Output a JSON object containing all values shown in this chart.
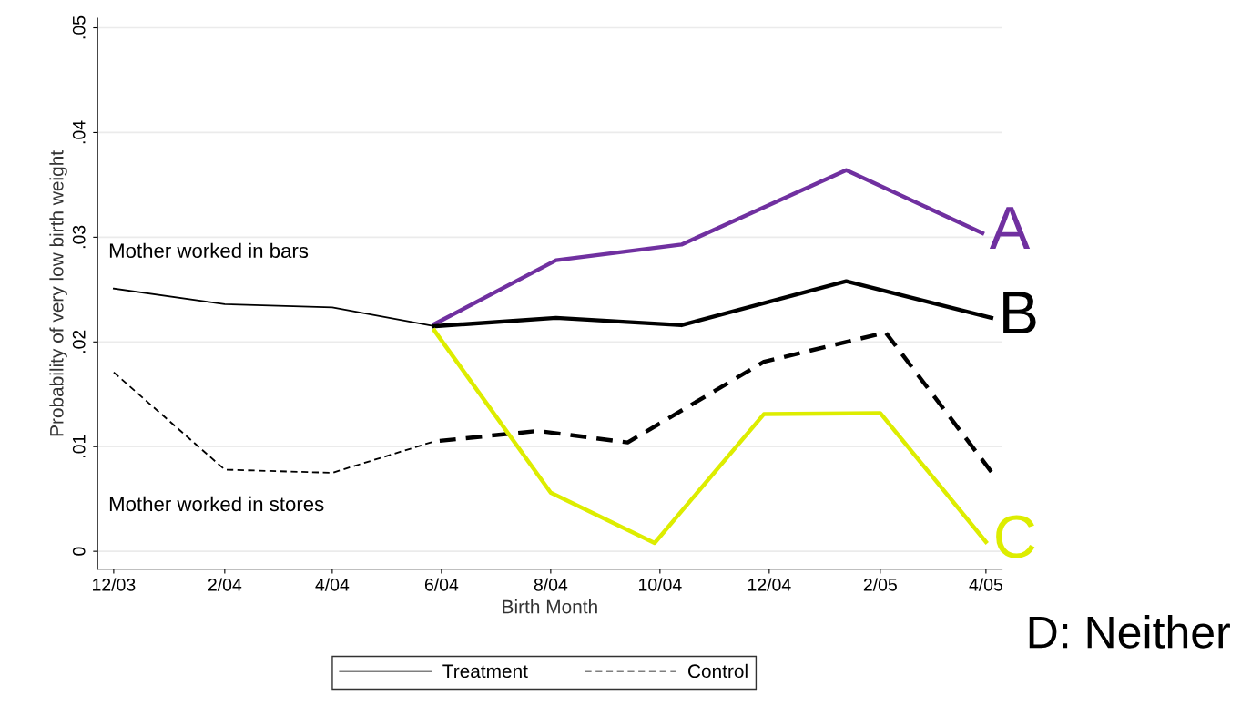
{
  "chart_data": {
    "type": "line",
    "xlabel": "Birth Month",
    "ylabel": "Probability of very low birth weight",
    "xlim": [
      "2003-11-22",
      "2005-04-10"
    ],
    "xticks": [
      {
        "value": "2003-12-01",
        "label": "12/03"
      },
      {
        "value": "2004-02-01",
        "label": "2/04"
      },
      {
        "value": "2004-04-01",
        "label": "4/04"
      },
      {
        "value": "2004-06-01",
        "label": "6/04"
      },
      {
        "value": "2004-08-01",
        "label": "8/04"
      },
      {
        "value": "2004-10-01",
        "label": "10/04"
      },
      {
        "value": "2004-12-01",
        "label": "12/04"
      },
      {
        "value": "2005-02-01",
        "label": "2/05"
      },
      {
        "value": "2005-04-01",
        "label": "4/05"
      }
    ],
    "ylim": [
      -0.0017,
      0.0509
    ],
    "yticks": [
      {
        "value": 0,
        "label": "0"
      },
      {
        "value": 0.01,
        "label": ".01"
      },
      {
        "value": 0.02,
        "label": ".02"
      },
      {
        "value": 0.03,
        "label": ".03"
      },
      {
        "value": 0.04,
        "label": ".04"
      },
      {
        "value": 0.05,
        "label": ".05"
      }
    ],
    "grid": "y",
    "legend": "bottom",
    "series": [
      {
        "name": "Treatment",
        "color": "#000000",
        "line_style": "solid",
        "x": [
          "2003-12-01",
          "2004-02-01",
          "2004-04-01",
          "2004-05-28"
        ],
        "values": [
          0.0251,
          0.0236,
          0.0233,
          0.0215
        ]
      },
      {
        "name": "Control",
        "color": "#000000",
        "line_style": "dashed",
        "x": [
          "2003-12-01",
          "2004-02-01",
          "2004-04-01",
          "2004-05-28"
        ],
        "values": [
          0.0171,
          0.0078,
          0.0075,
          0.0105
        ]
      },
      {
        "name": "A",
        "color": "#7030a0",
        "line_style": "solid",
        "x": [
          "2004-05-28",
          "2004-08-04",
          "2004-10-13",
          "2005-01-13",
          "2005-03-30"
        ],
        "values": [
          0.0217,
          0.0278,
          0.0293,
          0.0364,
          0.0304
        ]
      },
      {
        "name": "B",
        "color": "#000000",
        "line_style": "solid",
        "x": [
          "2004-05-28",
          "2004-08-04",
          "2004-10-13",
          "2005-01-13",
          "2005-04-04"
        ],
        "values": [
          0.0215,
          0.0223,
          0.0216,
          0.0258,
          0.0223
        ]
      },
      {
        "color": "#000000",
        "line_style": "dashed",
        "x": [
          "2004-05-28",
          "2004-07-25",
          "2004-09-13",
          "2004-11-28",
          "2005-02-04",
          "2005-04-04"
        ],
        "values": [
          0.0105,
          0.0115,
          0.0104,
          0.0181,
          0.0209,
          0.0076
        ]
      },
      {
        "name": "C",
        "color": "#dded00",
        "line_style": "solid",
        "x": [
          "2004-05-28",
          "2004-08-01",
          "2004-09-28",
          "2004-11-28",
          "2005-02-01",
          "2005-04-01"
        ],
        "values": [
          0.0211,
          0.0056,
          0.0008,
          0.0131,
          0.0132,
          0.0009
        ]
      }
    ],
    "annotations": [
      "Mother worked in bars",
      "Mother worked in stores",
      "D: Neither"
    ]
  }
}
